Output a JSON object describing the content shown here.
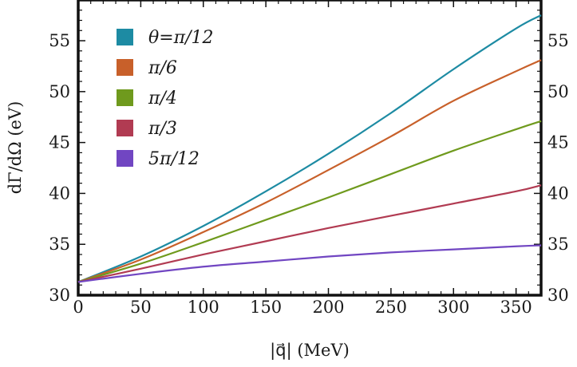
{
  "chart_data": {
    "type": "line",
    "title": "",
    "xlabel": "|q⃗| (MeV)",
    "ylabel": "dΓ/dΩ (eV)",
    "xlim": [
      0,
      370
    ],
    "ylim": [
      30,
      59
    ],
    "xticks": [
      0,
      50,
      100,
      150,
      200,
      250,
      300,
      350
    ],
    "yticks": [
      30,
      35,
      40,
      45,
      50,
      55
    ],
    "x": [
      0,
      50,
      100,
      150,
      200,
      250,
      300,
      350,
      370
    ],
    "series": [
      {
        "name": "θ=π/12",
        "color": "#1d8ba3",
        "values": [
          31.3,
          33.8,
          36.8,
          40.2,
          43.9,
          47.9,
          52.2,
          56.2,
          57.5
        ]
      },
      {
        "name": "π/6",
        "color": "#c8602a",
        "values": [
          31.3,
          33.5,
          36.2,
          39.1,
          42.3,
          45.6,
          49.1,
          52.0,
          53.1
        ]
      },
      {
        "name": "π/4",
        "color": "#6f9a1d",
        "values": [
          31.3,
          33.1,
          35.2,
          37.4,
          39.6,
          41.9,
          44.2,
          46.3,
          47.1
        ]
      },
      {
        "name": "π/3",
        "color": "#b13b52",
        "values": [
          31.3,
          32.6,
          34.0,
          35.3,
          36.6,
          37.8,
          39.0,
          40.2,
          40.8
        ]
      },
      {
        "name": "5π/12",
        "color": "#7146c2",
        "values": [
          31.3,
          32.1,
          32.8,
          33.3,
          33.8,
          34.2,
          34.5,
          34.8,
          34.9
        ]
      }
    ],
    "legend_position": "top-left",
    "grid": false,
    "frame": "full"
  }
}
